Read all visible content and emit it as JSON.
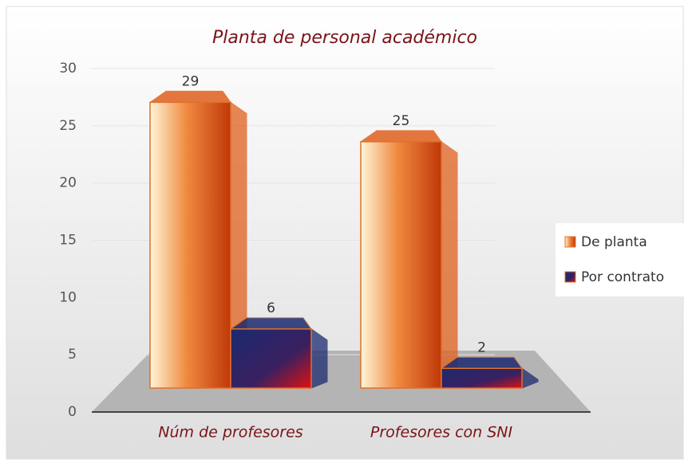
{
  "chart_data": {
    "type": "bar",
    "title": "Planta de personal académico",
    "categories": [
      "Núm de profesores",
      "Profesores con SNI"
    ],
    "series": [
      {
        "name": "De planta",
        "color": "#e0601e",
        "values": [
          29,
          25
        ]
      },
      {
        "name": "Por contrato",
        "color": "#1b2a70",
        "values": [
          6,
          2
        ]
      }
    ],
    "ylim": [
      0,
      30
    ],
    "yticks": [
      0,
      5,
      10,
      15,
      20,
      25,
      30
    ],
    "grid": true,
    "legend": "right"
  }
}
